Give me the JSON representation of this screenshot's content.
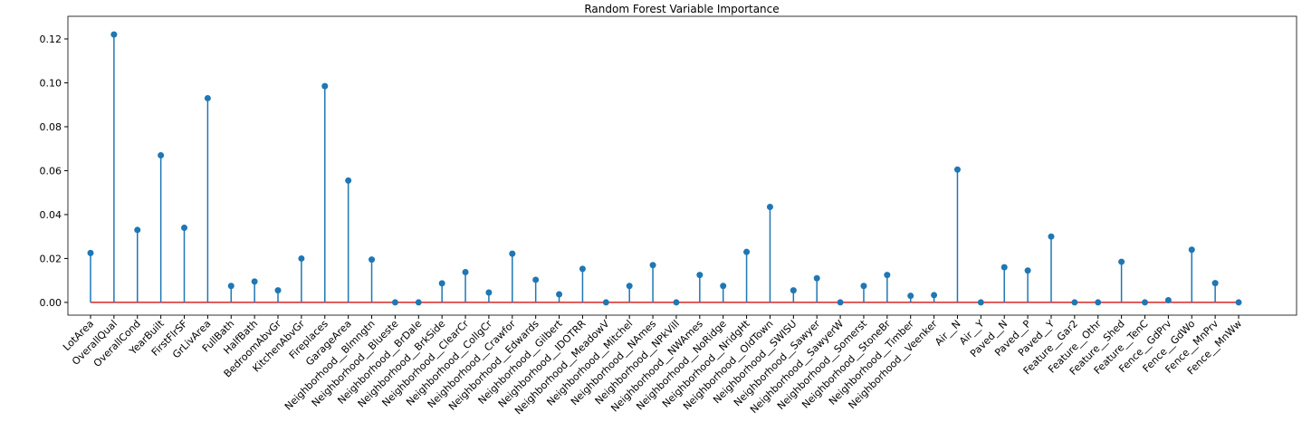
{
  "chart_data": {
    "type": "stem",
    "title": "Random Forest Variable Importance",
    "categories": [
      "LotArea",
      "OverallQual",
      "OverallCond",
      "YearBuilt",
      "FirstFlrSF",
      "GrLivArea",
      "FullBath",
      "HalfBath",
      "BedroomAbvGr",
      "KitchenAbvGr",
      "Fireplaces",
      "GarageArea",
      "Neighborhood__Blmngtn",
      "Neighborhood__Blueste",
      "Neighborhood__BrDale",
      "Neighborhood__BrkSide",
      "Neighborhood__ClearCr",
      "Neighborhood__CollgCr",
      "Neighborhood__Crawfor",
      "Neighborhood__Edwards",
      "Neighborhood__Gilbert",
      "Neighborhood__IDOTRR",
      "Neighborhood__MeadowV",
      "Neighborhood__Mitchel",
      "Neighborhood__NAmes",
      "Neighborhood__NPkVill",
      "Neighborhood__NWAmes",
      "Neighborhood__NoRidge",
      "Neighborhood__NridgHt",
      "Neighborhood__OldTown",
      "Neighborhood__SWISU",
      "Neighborhood__Sawyer",
      "Neighborhood__SawyerW",
      "Neighborhood__Somerst",
      "Neighborhood__StoneBr",
      "Neighborhood__Timber",
      "Neighborhood__Veenker",
      "Air__N",
      "Air__Y",
      "Paved__N",
      "Paved__P",
      "Paved__Y",
      "Feature__Gar2",
      "Feature__Othr",
      "Feature__Shed",
      "Feature__TenC",
      "Fence__GdPrv",
      "Fence__GdWo",
      "Fence__MnPrv",
      "Fence__MnWw"
    ],
    "values": [
      0.0225,
      0.122,
      0.033,
      0.067,
      0.034,
      0.093,
      0.0075,
      0.0095,
      0.0055,
      0.02,
      0.0985,
      0.0555,
      0.0195,
      0,
      0,
      0.0087,
      0.0138,
      0.0045,
      0.0222,
      0.0103,
      0.0037,
      0.0153,
      0,
      0.0075,
      0.017,
      0,
      0.0125,
      0.0075,
      0.023,
      0.0435,
      0.0055,
      0.011,
      0,
      0.0075,
      0.0125,
      0.003,
      0.0033,
      0.0605,
      0,
      0.016,
      0.0145,
      0.03,
      0,
      0,
      0.0185,
      0,
      0.001,
      0.024,
      0.0088,
      0
    ],
    "color": "#1f77b4",
    "baseline_color": "#d62728",
    "ylim": [
      -0.0058,
      0.1303
    ],
    "yticks": [
      {
        "value": 0,
        "label": "0.00"
      },
      {
        "value": 0.02,
        "label": "0.02"
      },
      {
        "value": 0.04,
        "label": "0.04"
      },
      {
        "value": 0.06,
        "label": "0.06"
      },
      {
        "value": 0.08,
        "label": "0.08"
      },
      {
        "value": 0.1,
        "label": "0.10"
      },
      {
        "value": 0.12,
        "label": "0.12"
      }
    ]
  }
}
